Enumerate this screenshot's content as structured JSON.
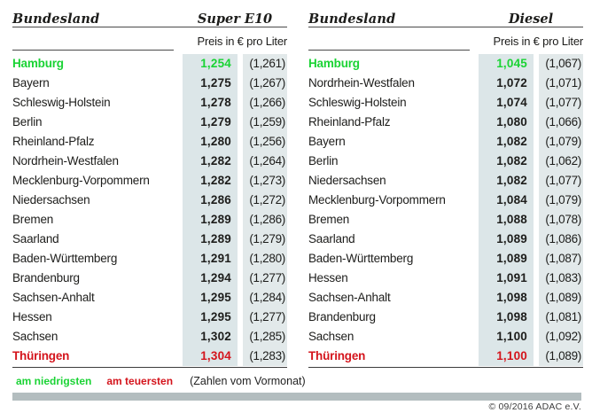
{
  "page": {
    "copyright": "© 09/2016 ADAC e.V."
  },
  "colors": {
    "lowest": "#1ad334",
    "highest": "#d4141c",
    "col_current_bg": "#dce6e8",
    "col_previous_bg": "#e2e9ea",
    "divider": "#4a4a4a",
    "bottom_bar": "#b3bdbf",
    "text": "#1d1d1b"
  },
  "legend": {
    "lowest_label": "am niedrigsten",
    "highest_label": "am teuersten",
    "note_label": "(Zahlen vom Vormonat)"
  },
  "tables": [
    {
      "state_header": "Bundesland",
      "fuel_header": "Super E10",
      "unit_header": "Preis in € pro Liter",
      "rows": [
        {
          "state": "Hamburg",
          "current": "1,254",
          "previous": "(1,261)",
          "highlight": "lowest"
        },
        {
          "state": "Bayern",
          "current": "1,275",
          "previous": "(1,267)"
        },
        {
          "state": "Schleswig-Holstein",
          "current": "1,278",
          "previous": "(1,266)"
        },
        {
          "state": "Berlin",
          "current": "1,279",
          "previous": "(1,259)"
        },
        {
          "state": "Rheinland-Pfalz",
          "current": "1,280",
          "previous": "(1,256)"
        },
        {
          "state": "Nordrhein-Westfalen",
          "current": "1,282",
          "previous": "(1,264)"
        },
        {
          "state": "Mecklenburg-Vorpommern",
          "current": "1,282",
          "previous": "(1,273)"
        },
        {
          "state": "Niedersachsen",
          "current": "1,286",
          "previous": "(1,272)"
        },
        {
          "state": "Bremen",
          "current": "1,289",
          "previous": "(1,286)"
        },
        {
          "state": "Saarland",
          "current": "1,289",
          "previous": "(1,279)"
        },
        {
          "state": "Baden-Württemberg",
          "current": "1,291",
          "previous": "(1,280)"
        },
        {
          "state": "Brandenburg",
          "current": "1,294",
          "previous": "(1,277)"
        },
        {
          "state": "Sachsen-Anhalt",
          "current": "1,295",
          "previous": "(1,284)"
        },
        {
          "state": "Hessen",
          "current": "1,295",
          "previous": "(1,277)"
        },
        {
          "state": "Sachsen",
          "current": "1,302",
          "previous": "(1,285)"
        },
        {
          "state": "Thüringen",
          "current": "1,304",
          "previous": "(1,283)",
          "highlight": "highest"
        }
      ]
    },
    {
      "state_header": "Bundesland",
      "fuel_header": "Diesel",
      "unit_header": "Preis in € pro Liter",
      "rows": [
        {
          "state": "Hamburg",
          "current": "1,045",
          "previous": "(1,067)",
          "highlight": "lowest"
        },
        {
          "state": "Nordrhein-Westfalen",
          "current": "1,072",
          "previous": "(1,071)"
        },
        {
          "state": "Schleswig-Holstein",
          "current": "1,074",
          "previous": "(1,077)"
        },
        {
          "state": "Rheinland-Pfalz",
          "current": "1,080",
          "previous": "(1,066)"
        },
        {
          "state": "Bayern",
          "current": "1,082",
          "previous": "(1,079)"
        },
        {
          "state": "Berlin",
          "current": "1,082",
          "previous": "(1,062)"
        },
        {
          "state": "Niedersachsen",
          "current": "1,082",
          "previous": "(1,077)"
        },
        {
          "state": "Mecklenburg-Vorpommern",
          "current": "1,084",
          "previous": "(1,079)"
        },
        {
          "state": "Bremen",
          "current": "1,088",
          "previous": "(1,078)"
        },
        {
          "state": "Saarland",
          "current": "1,089",
          "previous": "(1,086)"
        },
        {
          "state": "Baden-Württemberg",
          "current": "1,089",
          "previous": "(1,087)"
        },
        {
          "state": "Hessen",
          "current": "1,091",
          "previous": "(1,083)"
        },
        {
          "state": "Sachsen-Anhalt",
          "current": "1,098",
          "previous": "(1,089)"
        },
        {
          "state": "Brandenburg",
          "current": "1,098",
          "previous": "(1,081)"
        },
        {
          "state": "Sachsen",
          "current": "1,100",
          "previous": "(1,092)"
        },
        {
          "state": "Thüringen",
          "current": "1,100",
          "previous": "(1,089)",
          "highlight": "highest"
        }
      ]
    }
  ],
  "chart_data": [
    {
      "type": "table",
      "title": "Super E10",
      "columns": [
        "Bundesland",
        "Preis in € pro Liter",
        "Preis Vormonat in € pro Liter"
      ],
      "rows": [
        [
          "Hamburg",
          1.254,
          1.261
        ],
        [
          "Bayern",
          1.275,
          1.267
        ],
        [
          "Schleswig-Holstein",
          1.278,
          1.266
        ],
        [
          "Berlin",
          1.279,
          1.259
        ],
        [
          "Rheinland-Pfalz",
          1.28,
          1.256
        ],
        [
          "Nordrhein-Westfalen",
          1.282,
          1.264
        ],
        [
          "Mecklenburg-Vorpommern",
          1.282,
          1.273
        ],
        [
          "Niedersachsen",
          1.286,
          1.272
        ],
        [
          "Bremen",
          1.289,
          1.286
        ],
        [
          "Saarland",
          1.289,
          1.279
        ],
        [
          "Baden-Württemberg",
          1.291,
          1.28
        ],
        [
          "Brandenburg",
          1.294,
          1.277
        ],
        [
          "Sachsen-Anhalt",
          1.295,
          1.284
        ],
        [
          "Hessen",
          1.295,
          1.277
        ],
        [
          "Sachsen",
          1.302,
          1.285
        ],
        [
          "Thüringen",
          1.304,
          1.283
        ]
      ],
      "annotations": {
        "lowest": "Hamburg",
        "highest": "Thüringen"
      }
    },
    {
      "type": "table",
      "title": "Diesel",
      "columns": [
        "Bundesland",
        "Preis in € pro Liter",
        "Preis Vormonat in € pro Liter"
      ],
      "rows": [
        [
          "Hamburg",
          1.045,
          1.067
        ],
        [
          "Nordrhein-Westfalen",
          1.072,
          1.071
        ],
        [
          "Schleswig-Holstein",
          1.074,
          1.077
        ],
        [
          "Rheinland-Pfalz",
          1.08,
          1.066
        ],
        [
          "Bayern",
          1.082,
          1.079
        ],
        [
          "Berlin",
          1.082,
          1.062
        ],
        [
          "Niedersachsen",
          1.082,
          1.077
        ],
        [
          "Mecklenburg-Vorpommern",
          1.084,
          1.079
        ],
        [
          "Bremen",
          1.088,
          1.078
        ],
        [
          "Saarland",
          1.089,
          1.086
        ],
        [
          "Baden-Württemberg",
          1.089,
          1.087
        ],
        [
          "Hessen",
          1.091,
          1.083
        ],
        [
          "Sachsen-Anhalt",
          1.098,
          1.089
        ],
        [
          "Brandenburg",
          1.098,
          1.081
        ],
        [
          "Sachsen",
          1.1,
          1.092
        ],
        [
          "Thüringen",
          1.1,
          1.089
        ]
      ],
      "annotations": {
        "lowest": "Hamburg",
        "highest": "Thüringen"
      }
    }
  ]
}
